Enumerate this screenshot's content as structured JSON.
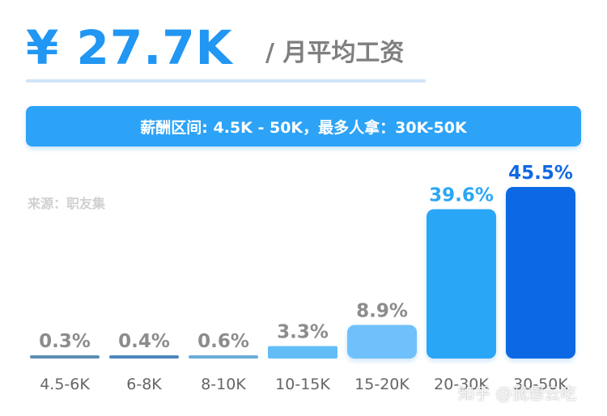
{
  "header": {
    "salary": "¥ 27.7K",
    "unit": "/ 月平均工资"
  },
  "banner": {
    "text": "薪酬区间: 4.5K - 50K，最多人拿：30K-50K"
  },
  "source": "来源：职友集",
  "watermark": "知乎 @我想云吃",
  "chart_data": {
    "type": "bar",
    "categories": [
      "4.5-6K",
      "6-8K",
      "8-10K",
      "10-15K",
      "15-20K",
      "20-30K",
      "30-50K"
    ],
    "values": [
      0.3,
      0.4,
      0.6,
      3.3,
      8.9,
      39.6,
      45.5
    ],
    "value_labels": [
      "0.3%",
      "0.4%",
      "0.6%",
      "3.3%",
      "8.9%",
      "39.6%",
      "45.5%"
    ],
    "ylim": [
      0,
      45.5
    ],
    "colors": [
      "#5c8fb1",
      "#4d88bc",
      "#6aacd9",
      "#62bdf7",
      "#6fc1fb",
      "#2ba6f6",
      "#1069e3"
    ],
    "label_colors": [
      "#8c8c8c",
      "#8c8c8c",
      "#8c8c8c",
      "#8c8c8c",
      "#8c8c8c",
      "#2ba6f6",
      "#1069e3"
    ],
    "grid": false,
    "legend": "none"
  }
}
